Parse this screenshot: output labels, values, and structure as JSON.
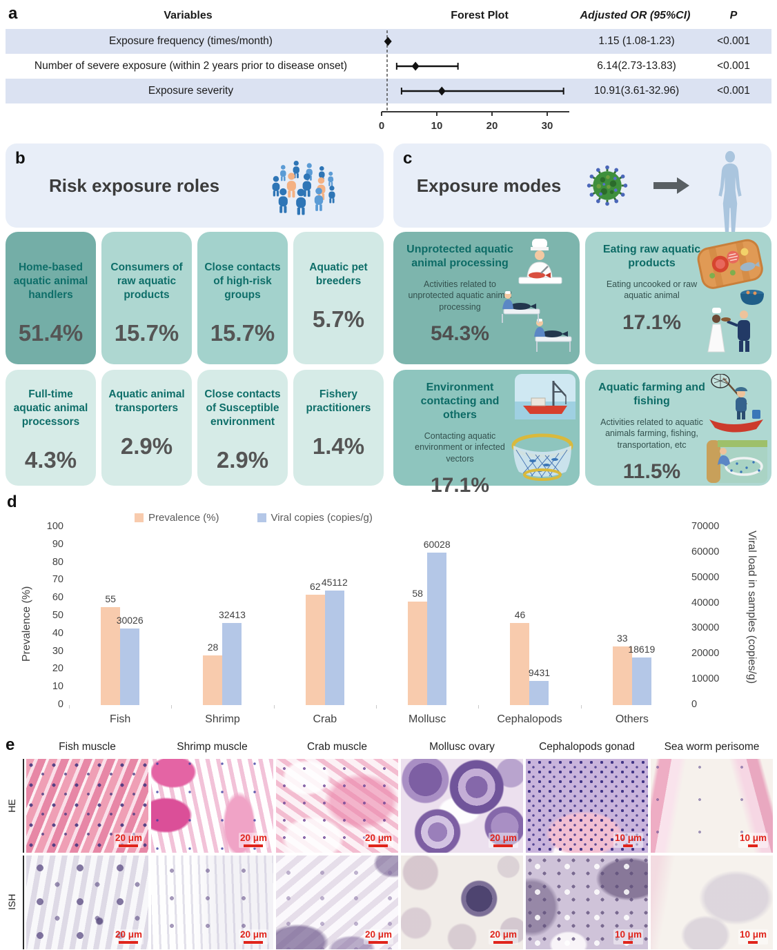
{
  "colors": {
    "prevalence_bar": "#F8CBAD",
    "viral_bar": "#B4C7E7",
    "table_stripe": "#dbe2f2",
    "header_band": "#e8eef8",
    "card_teal_dark": "#74aea7",
    "card_teal_light": "#d6ebe7",
    "card_title_teal": "#0e6e69",
    "scalebar_red": "#e0241b"
  },
  "panel_a": {
    "label": "a",
    "columns": [
      "Variables",
      "Forest Plot",
      "Adjusted OR (95%CI)",
      "P"
    ],
    "rows": [
      {
        "variable": "Exposure frequency (times/month)",
        "or_text": "1.15 (1.08-1.23)",
        "p": "<0.001"
      },
      {
        "variable": "Number of severe exposure (within 2 years prior to disease onset)",
        "or_text": "6.14(2.73-13.83)",
        "p": "<0.001"
      },
      {
        "variable": "Exposure severity",
        "or_text": "10.91(3.61-32.96)",
        "p": "<0.001"
      }
    ]
  },
  "panel_b": {
    "label": "b",
    "title": "Risk exposure roles",
    "cards": [
      {
        "title": "Home-based aquatic animal handlers",
        "value": "51.4%"
      },
      {
        "title": "Consumers of raw aquatic products",
        "value": "15.7%"
      },
      {
        "title": "Close contacts of high-risk groups",
        "value": "15.7%"
      },
      {
        "title": "Aquatic pet breeders",
        "value": "5.7%"
      },
      {
        "title": "Full-time aquatic animal processors",
        "value": "4.3%"
      },
      {
        "title": "Aquatic animal transporters",
        "value": "2.9%"
      },
      {
        "title": "Close contacts of Susceptible environment",
        "value": "2.9%"
      },
      {
        "title": "Fishery practitioners",
        "value": "1.4%"
      }
    ]
  },
  "panel_c": {
    "label": "c",
    "title": "Exposure modes",
    "cards": [
      {
        "title": "Unprotected aquatic animal processing",
        "desc": "Activities related to unprotected aquatic animal processing",
        "value": "54.3%"
      },
      {
        "title": "Eating raw aquatic products",
        "desc": "Eating uncooked or raw aquatic animal",
        "value": "17.1%"
      },
      {
        "title": "Environment contacting and others",
        "desc": "Contacting aquatic environment or infected vectors",
        "value": "17.1%"
      },
      {
        "title": "Aquatic farming and fishing",
        "desc": "Activities related to aquatic animals farming, fishing, transportation, etc",
        "value": "11.5%"
      }
    ]
  },
  "panel_d": {
    "label": "d"
  },
  "panel_e": {
    "label": "e",
    "row_labels": [
      "HE",
      "ISH"
    ],
    "columns": [
      {
        "title": "Fish muscle",
        "scale": "20 μm"
      },
      {
        "title": "Shrimp muscle",
        "scale": "20 μm"
      },
      {
        "title": "Crab muscle",
        "scale": "20 μm"
      },
      {
        "title": "Mollusc ovary",
        "scale": "20 μm"
      },
      {
        "title": "Cephalopods gonad",
        "scale": "10 μm"
      },
      {
        "title": "Sea worm perisome",
        "scale": "10 μm"
      }
    ]
  },
  "chart_data": [
    {
      "type": "scatter",
      "subtype": "forest-plot",
      "title": "Forest Plot",
      "rows": [
        {
          "label": "Exposure frequency (times/month)",
          "or": 1.15,
          "ci_low": 1.08,
          "ci_high": 1.23,
          "p": "<0.001"
        },
        {
          "label": "Number of severe exposure (within 2 years prior to disease onset)",
          "or": 6.14,
          "ci_low": 2.73,
          "ci_high": 13.83,
          "p": "<0.001"
        },
        {
          "label": "Exposure severity",
          "or": 10.91,
          "ci_low": 3.61,
          "ci_high": 32.96,
          "p": "<0.001"
        }
      ],
      "x_ticks": [
        0,
        10,
        20,
        30
      ],
      "xlim": [
        0,
        34
      ],
      "reference_line": 1
    },
    {
      "type": "bar",
      "categories": [
        "Fish",
        "Shrimp",
        "Crab",
        "Mollusc",
        "Cephalopods",
        "Others"
      ],
      "series": [
        {
          "name": "Prevalence (%)",
          "axis": "left",
          "color": "#F8CBAD",
          "values": [
            55,
            28,
            62,
            58,
            46,
            33
          ]
        },
        {
          "name": "Viral copies (copies/g)",
          "axis": "right",
          "color": "#B4C7E7",
          "values": [
            30026,
            32413,
            45112,
            60028,
            9431,
            18619
          ]
        }
      ],
      "ylabel_left": "Prevalence (%)",
      "ylabel_right": "Viral load in samples (copies/g)",
      "ylim_left": [
        0,
        100
      ],
      "ylim_right": [
        0,
        70000
      ],
      "yticks_left": [
        0,
        10,
        20,
        30,
        40,
        50,
        60,
        70,
        80,
        90,
        100
      ],
      "yticks_right": [
        0,
        10000,
        20000,
        30000,
        40000,
        50000,
        60000,
        70000
      ],
      "legend_position": "top",
      "grid": false
    }
  ]
}
